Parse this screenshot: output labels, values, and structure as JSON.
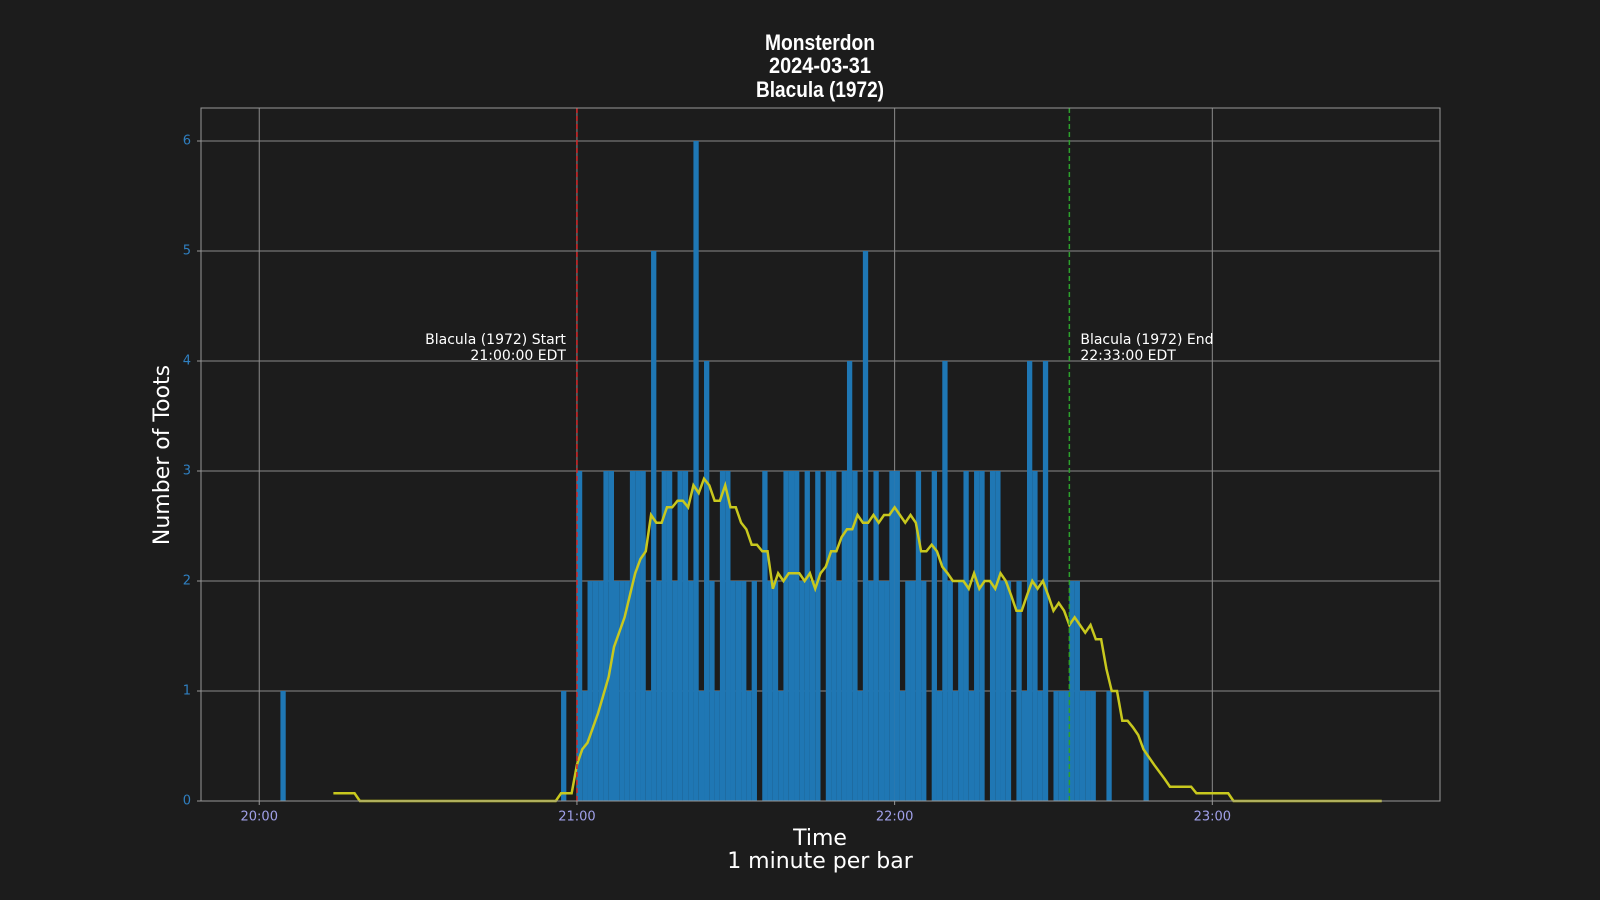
{
  "chart_data": {
    "type": "bar",
    "title": [
      "Monsterdon",
      "2024-03-31",
      "Blacula (1972)"
    ],
    "x_label": [
      "Time",
      "1 minute per bar"
    ],
    "y_label": "Number of Toots",
    "xlim": [
      "19:49",
      "23:43"
    ],
    "xticks": [
      "20:00",
      "21:00",
      "22:00",
      "23:00"
    ],
    "ylim": [
      0,
      6.3
    ],
    "yticks": [
      0,
      1,
      2,
      3,
      4,
      5,
      6
    ],
    "grid": true,
    "series": [
      {
        "type": "bar",
        "color": "#1f77b4",
        "x": [
          "20:04",
          "20:57",
          "21:00",
          "21:01",
          "21:02",
          "21:03",
          "21:04",
          "21:05",
          "21:06",
          "21:07",
          "21:08",
          "21:09",
          "21:10",
          "21:11",
          "21:12",
          "21:13",
          "21:14",
          "21:15",
          "21:16",
          "21:17",
          "21:18",
          "21:19",
          "21:20",
          "21:21",
          "21:22",
          "21:23",
          "21:24",
          "21:25",
          "21:26",
          "21:27",
          "21:28",
          "21:29",
          "21:30",
          "21:31",
          "21:32",
          "21:33",
          "21:34",
          "21:35",
          "21:36",
          "21:37",
          "21:38",
          "21:39",
          "21:40",
          "21:41",
          "21:42",
          "21:43",
          "21:44",
          "21:45",
          "21:46",
          "21:47",
          "21:48",
          "21:49",
          "21:50",
          "21:51",
          "21:52",
          "21:53",
          "21:54",
          "21:55",
          "21:56",
          "21:57",
          "21:58",
          "21:59",
          "22:00",
          "22:01",
          "22:02",
          "22:03",
          "22:04",
          "22:05",
          "22:06",
          "22:07",
          "22:08",
          "22:09",
          "22:10",
          "22:11",
          "22:12",
          "22:13",
          "22:14",
          "22:15",
          "22:16",
          "22:17",
          "22:18",
          "22:19",
          "22:20",
          "22:21",
          "22:22",
          "22:23",
          "22:24",
          "22:25",
          "22:26",
          "22:27",
          "22:28",
          "22:29",
          "22:30",
          "22:31",
          "22:32",
          "22:33",
          "22:34",
          "22:35",
          "22:36",
          "22:37",
          "22:40",
          "22:47"
        ],
        "values": [
          1,
          1,
          3,
          1,
          2,
          2,
          2,
          3,
          3,
          2,
          2,
          2,
          3,
          3,
          3,
          1,
          5,
          2,
          3,
          3,
          2,
          3,
          3,
          2,
          6,
          1,
          4,
          2,
          1,
          3,
          3,
          2,
          2,
          2,
          1,
          2,
          0,
          3,
          2,
          2,
          1,
          3,
          3,
          3,
          2,
          3,
          2,
          3,
          0,
          3,
          3,
          2,
          3,
          4,
          3,
          1,
          5,
          2,
          3,
          2,
          2,
          3,
          3,
          1,
          2,
          2,
          3,
          2,
          0,
          3,
          1,
          4,
          2,
          1,
          2,
          3,
          1,
          3,
          3,
          0,
          3,
          3,
          2,
          2,
          0,
          2,
          1,
          4,
          3,
          1,
          4,
          0,
          1,
          1,
          1,
          2,
          2,
          1,
          1,
          1,
          1,
          1
        ]
      },
      {
        "type": "line",
        "color": "#c8c81e",
        "x": [
          "20:14",
          "20:18",
          "20:19",
          "20:56",
          "20:57",
          "20:59",
          "21:00",
          "21:01",
          "21:02",
          "21:04",
          "21:06",
          "21:07",
          "21:09",
          "21:11",
          "21:12",
          "21:13",
          "21:14",
          "21:15",
          "21:16",
          "21:17",
          "21:18",
          "21:19",
          "21:20",
          "21:21",
          "21:22",
          "21:23",
          "21:24",
          "21:25",
          "21:26",
          "21:27",
          "21:28",
          "21:29",
          "21:30",
          "21:31",
          "21:32",
          "21:33",
          "21:34",
          "21:35",
          "21:36",
          "21:37",
          "21:38",
          "21:39",
          "21:40",
          "21:41",
          "21:42",
          "21:43",
          "21:44",
          "21:45",
          "21:46",
          "21:47",
          "21:48",
          "21:49",
          "21:50",
          "21:51",
          "21:52",
          "21:53",
          "21:54",
          "21:55",
          "21:56",
          "21:57",
          "21:58",
          "21:59",
          "22:00",
          "22:01",
          "22:02",
          "22:03",
          "22:04",
          "22:05",
          "22:06",
          "22:07",
          "22:08",
          "22:09",
          "22:10",
          "22:11",
          "22:12",
          "22:13",
          "22:14",
          "22:15",
          "22:16",
          "22:17",
          "22:18",
          "22:19",
          "22:20",
          "22:21",
          "22:22",
          "22:23",
          "22:24",
          "22:25",
          "22:26",
          "22:27",
          "22:28",
          "22:29",
          "22:30",
          "22:31",
          "22:32",
          "22:33",
          "22:34",
          "22:35",
          "22:36",
          "22:37",
          "22:38",
          "22:39",
          "22:40",
          "22:41",
          "22:42",
          "22:43",
          "22:44",
          "22:45",
          "22:46",
          "22:47",
          "22:49",
          "22:51",
          "22:52",
          "22:56",
          "22:57",
          "23:03",
          "23:04",
          "23:32"
        ],
        "values": [
          0.07,
          0.07,
          0,
          0,
          0.07,
          0.07,
          0.33,
          0.47,
          0.53,
          0.8,
          1.13,
          1.4,
          1.67,
          2.07,
          2.2,
          2.27,
          2.6,
          2.53,
          2.53,
          2.67,
          2.67,
          2.73,
          2.73,
          2.67,
          2.87,
          2.8,
          2.93,
          2.87,
          2.73,
          2.73,
          2.87,
          2.67,
          2.67,
          2.53,
          2.47,
          2.33,
          2.33,
          2.27,
          2.27,
          1.93,
          2.07,
          2.0,
          2.07,
          2.07,
          2.07,
          2.0,
          2.07,
          1.93,
          2.07,
          2.13,
          2.27,
          2.27,
          2.4,
          2.47,
          2.47,
          2.6,
          2.53,
          2.53,
          2.6,
          2.53,
          2.6,
          2.6,
          2.67,
          2.6,
          2.53,
          2.6,
          2.53,
          2.27,
          2.27,
          2.33,
          2.27,
          2.13,
          2.07,
          2.0,
          2.0,
          2.0,
          1.93,
          2.07,
          1.93,
          2.0,
          2.0,
          1.93,
          2.07,
          2.0,
          1.87,
          1.73,
          1.73,
          1.87,
          2.0,
          1.93,
          2.0,
          1.87,
          1.73,
          1.8,
          1.73,
          1.6,
          1.67,
          1.6,
          1.53,
          1.6,
          1.47,
          1.47,
          1.2,
          1.0,
          1.0,
          0.73,
          0.73,
          0.67,
          0.6,
          0.47,
          0.33,
          0.2,
          0.13,
          0.13,
          0.07,
          0.07,
          0,
          0
        ]
      }
    ],
    "annotations": [
      {
        "x": "21:00",
        "color": "#d62728",
        "text": [
          "Blacula (1972) Start",
          "21:00:00 EDT"
        ],
        "side": "left"
      },
      {
        "x": "22:33",
        "color": "#2ca02c",
        "text": [
          "Blacula (1972) End",
          "22:33:00 EDT"
        ],
        "side": "right"
      }
    ]
  }
}
